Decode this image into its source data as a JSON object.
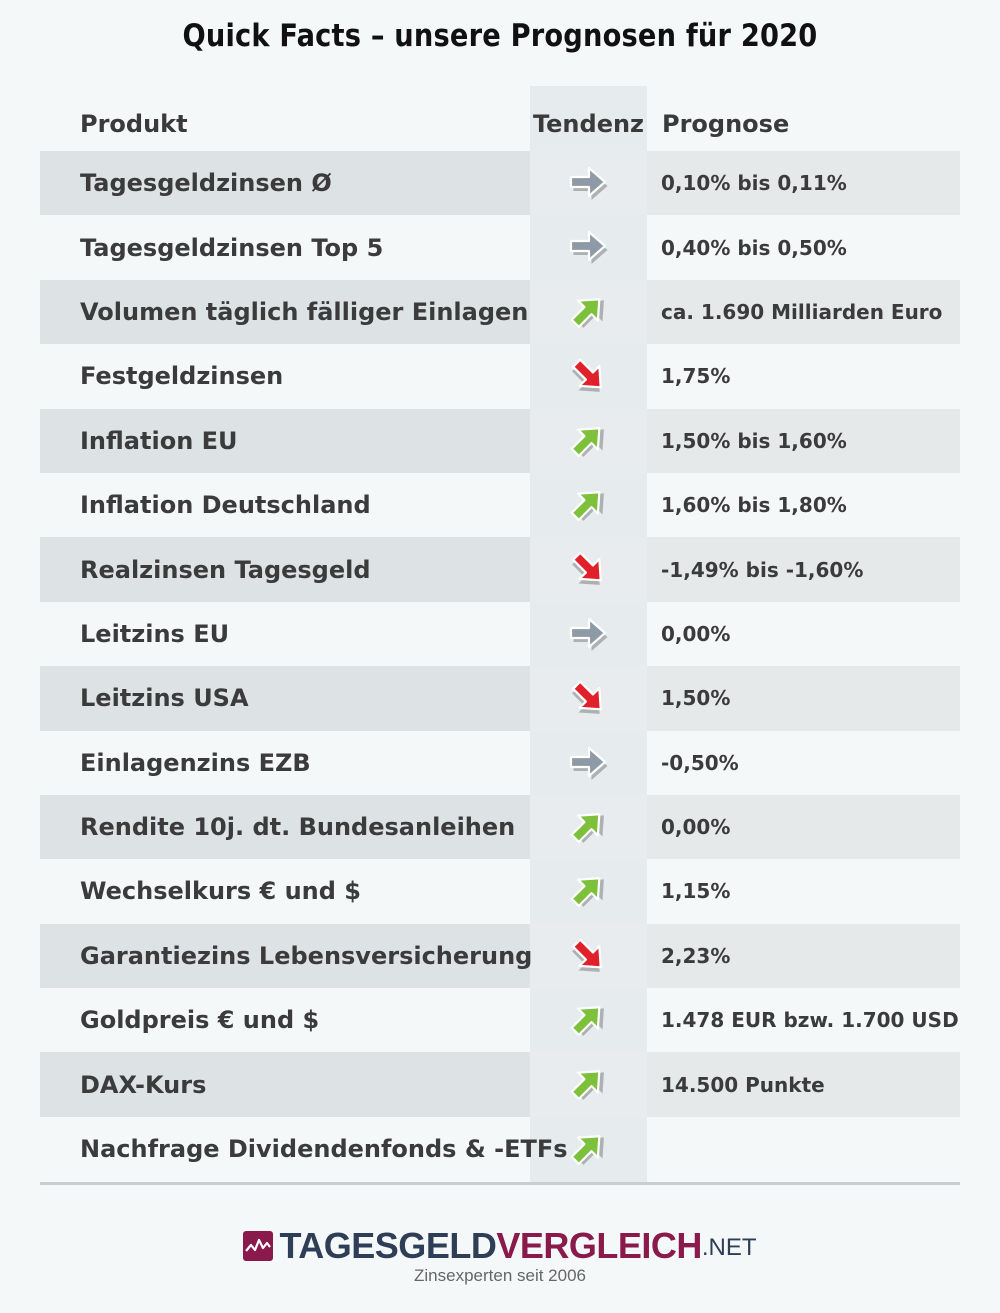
{
  "title": "Quick Facts – unsere Prognosen für 2020",
  "columns": {
    "produkt": "Produkt",
    "tendenz": "Tendenz",
    "prognose": "Prognose"
  },
  "colors": {
    "up": "#7dc03c",
    "down": "#e0202a",
    "flat": "#8e9aa6"
  },
  "rows": [
    {
      "produkt": "Tagesgeldzinsen Ø",
      "tendenz": "flat",
      "prognose": "0,10% bis 0,11%"
    },
    {
      "produkt": "Tagesgeldzinsen Top 5",
      "tendenz": "flat",
      "prognose": "0,40% bis 0,50%"
    },
    {
      "produkt": "Volumen täglich fälliger Einlagen",
      "tendenz": "up",
      "prognose": "ca. 1.690 Milliarden Euro"
    },
    {
      "produkt": "Festgeldzinsen",
      "tendenz": "down",
      "prognose": "1,75%"
    },
    {
      "produkt": "Inflation EU",
      "tendenz": "up",
      "prognose": "1,50% bis 1,60%"
    },
    {
      "produkt": "Inflation Deutschland",
      "tendenz": "up",
      "prognose": "1,60% bis 1,80%"
    },
    {
      "produkt": "Realzinsen Tagesgeld",
      "tendenz": "down",
      "prognose": "-1,49% bis -1,60%"
    },
    {
      "produkt": "Leitzins EU",
      "tendenz": "flat",
      "prognose": "0,00%"
    },
    {
      "produkt": "Leitzins USA",
      "tendenz": "down",
      "prognose": "1,50%"
    },
    {
      "produkt": "Einlagenzins EZB",
      "tendenz": "flat",
      "prognose": "-0,50%"
    },
    {
      "produkt": "Rendite 10j. dt. Bundesanleihen",
      "tendenz": "up",
      "prognose": "0,00%"
    },
    {
      "produkt": "Wechselkurs € und $",
      "tendenz": "up",
      "prognose": "1,15%"
    },
    {
      "produkt": "Garantiezins Lebensversicherung",
      "tendenz": "down",
      "prognose": "2,23%"
    },
    {
      "produkt": "Goldpreis € und $",
      "tendenz": "up",
      "prognose": "1.478 EUR bzw. 1.700 USD"
    },
    {
      "produkt": "DAX-Kurs",
      "tendenz": "up",
      "prognose": "14.500 Punkte"
    },
    {
      "produkt": "Nachfrage Dividendenfonds & -ETFs",
      "tendenz": "up",
      "prognose": ""
    }
  ],
  "logo": {
    "part1": "TAGESGELD",
    "part2": "VERGLEICH",
    "tld": ".NET",
    "tagline": "Zinsexperten seit 2006"
  }
}
